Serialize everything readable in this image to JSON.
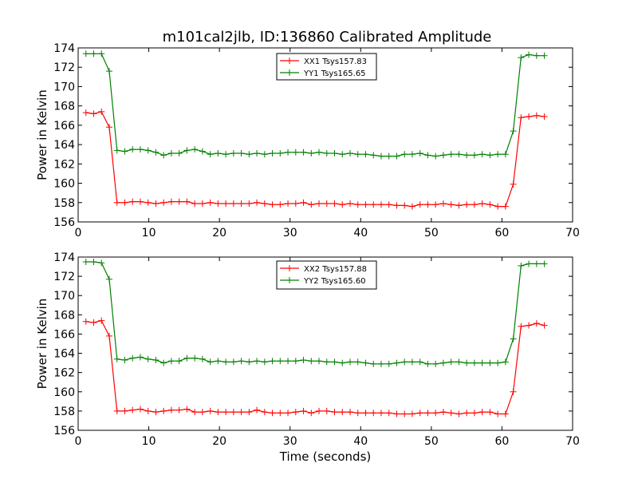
{
  "figure": {
    "title": "m101cal2jlb, ID:136860 Calibrated Amplitude"
  },
  "colors": {
    "xx": "#ff0000",
    "yy": "#008000",
    "axis": "#000000",
    "background": "#ffffff"
  },
  "chart_data": [
    {
      "type": "line",
      "title": "m101cal2jlb, ID:136860 Calibrated Amplitude",
      "xlabel": "",
      "ylabel": "Power in Kelvin",
      "xlim": [
        0,
        70
      ],
      "ylim": [
        156,
        174
      ],
      "xticks": [
        0,
        10,
        20,
        30,
        40,
        50,
        60,
        70
      ],
      "yticks": [
        156,
        158,
        160,
        162,
        164,
        166,
        168,
        170,
        172,
        174
      ],
      "grid": false,
      "legend_position": "top-center",
      "x": [
        1.1,
        2.2,
        3.3,
        4.4,
        5.5,
        6.6,
        7.7,
        8.8,
        9.9,
        11,
        12.1,
        13.2,
        14.3,
        15.4,
        16.5,
        17.6,
        18.7,
        19.8,
        20.9,
        22,
        23.1,
        24.2,
        25.3,
        26.4,
        27.5,
        28.6,
        29.7,
        30.8,
        31.9,
        33,
        34.1,
        35.2,
        36.3,
        37.4,
        38.5,
        39.6,
        40.7,
        41.8,
        42.9,
        44,
        45.1,
        46.2,
        47.3,
        48.4,
        49.5,
        50.6,
        51.7,
        52.8,
        53.9,
        55,
        56.1,
        57.2,
        58.3,
        59.4,
        60.5,
        61.6,
        62.7,
        63.8,
        64.9,
        66
      ],
      "series": [
        {
          "name": "XX1 Tsys157.83",
          "color": "#ff0000",
          "values": [
            167.3,
            167.2,
            167.4,
            165.8,
            158.0,
            158.0,
            158.1,
            158.1,
            158.0,
            157.9,
            158.0,
            158.1,
            158.1,
            158.1,
            157.9,
            157.9,
            158.0,
            157.9,
            157.9,
            157.9,
            157.9,
            157.9,
            158.0,
            157.9,
            157.8,
            157.8,
            157.9,
            157.9,
            158.0,
            157.8,
            157.9,
            157.9,
            157.9,
            157.8,
            157.9,
            157.8,
            157.8,
            157.8,
            157.8,
            157.8,
            157.7,
            157.7,
            157.6,
            157.8,
            157.8,
            157.8,
            157.9,
            157.8,
            157.7,
            157.8,
            157.8,
            157.9,
            157.8,
            157.6,
            157.6,
            159.9,
            166.8,
            166.9,
            167.0,
            166.9
          ]
        },
        {
          "name": "YY1 Tsys165.65",
          "color": "#008000",
          "values": [
            173.4,
            173.4,
            173.4,
            171.6,
            163.4,
            163.3,
            163.5,
            163.5,
            163.4,
            163.2,
            162.9,
            163.1,
            163.1,
            163.4,
            163.5,
            163.3,
            163.0,
            163.1,
            163.0,
            163.1,
            163.1,
            163.0,
            163.1,
            163.0,
            163.1,
            163.1,
            163.2,
            163.2,
            163.2,
            163.1,
            163.2,
            163.1,
            163.1,
            163.0,
            163.1,
            163.0,
            163.0,
            162.9,
            162.8,
            162.8,
            162.8,
            163.0,
            163.0,
            163.1,
            162.9,
            162.8,
            162.9,
            163.0,
            163.0,
            162.9,
            162.9,
            163.0,
            162.9,
            163.0,
            163.0,
            165.4,
            173.0,
            173.3,
            173.2,
            173.2
          ]
        }
      ]
    },
    {
      "type": "line",
      "title": "",
      "xlabel": "Time (seconds)",
      "ylabel": "Power in Kelvin",
      "xlim": [
        0,
        70
      ],
      "ylim": [
        156,
        174
      ],
      "xticks": [
        0,
        10,
        20,
        30,
        40,
        50,
        60,
        70
      ],
      "yticks": [
        156,
        158,
        160,
        162,
        164,
        166,
        168,
        170,
        172,
        174
      ],
      "grid": false,
      "legend_position": "top-center",
      "x": [
        1.1,
        2.2,
        3.3,
        4.4,
        5.5,
        6.6,
        7.7,
        8.8,
        9.9,
        11,
        12.1,
        13.2,
        14.3,
        15.4,
        16.5,
        17.6,
        18.7,
        19.8,
        20.9,
        22,
        23.1,
        24.2,
        25.3,
        26.4,
        27.5,
        28.6,
        29.7,
        30.8,
        31.9,
        33,
        34.1,
        35.2,
        36.3,
        37.4,
        38.5,
        39.6,
        40.7,
        41.8,
        42.9,
        44,
        45.1,
        46.2,
        47.3,
        48.4,
        49.5,
        50.6,
        51.7,
        52.8,
        53.9,
        55,
        56.1,
        57.2,
        58.3,
        59.4,
        60.5,
        61.6,
        62.7,
        63.8,
        64.9,
        66
      ],
      "series": [
        {
          "name": "XX2 Tsys157.88",
          "color": "#ff0000",
          "values": [
            167.3,
            167.2,
            167.4,
            165.8,
            158.0,
            158.0,
            158.1,
            158.2,
            158.0,
            157.9,
            158.0,
            158.1,
            158.1,
            158.2,
            157.9,
            157.9,
            158.0,
            157.9,
            157.9,
            157.9,
            157.9,
            157.9,
            158.1,
            157.9,
            157.8,
            157.8,
            157.8,
            157.9,
            158.0,
            157.8,
            158.0,
            158.0,
            157.9,
            157.9,
            157.9,
            157.8,
            157.8,
            157.8,
            157.8,
            157.8,
            157.7,
            157.7,
            157.7,
            157.8,
            157.8,
            157.8,
            157.9,
            157.8,
            157.7,
            157.8,
            157.8,
            157.9,
            157.9,
            157.7,
            157.7,
            160.0,
            166.8,
            166.9,
            167.1,
            166.9
          ]
        },
        {
          "name": "YY2 Tsys165.60",
          "color": "#008000",
          "values": [
            173.5,
            173.5,
            173.4,
            171.7,
            163.4,
            163.3,
            163.5,
            163.6,
            163.4,
            163.3,
            163.0,
            163.2,
            163.2,
            163.5,
            163.5,
            163.4,
            163.1,
            163.2,
            163.1,
            163.1,
            163.2,
            163.1,
            163.2,
            163.1,
            163.2,
            163.2,
            163.2,
            163.2,
            163.3,
            163.2,
            163.2,
            163.1,
            163.1,
            163.0,
            163.1,
            163.1,
            163.0,
            162.9,
            162.9,
            162.9,
            163.0,
            163.1,
            163.1,
            163.1,
            162.9,
            162.9,
            163.0,
            163.1,
            163.1,
            163.0,
            163.0,
            163.0,
            163.0,
            163.0,
            163.1,
            165.5,
            173.1,
            173.3,
            173.3,
            173.3
          ]
        }
      ]
    }
  ]
}
